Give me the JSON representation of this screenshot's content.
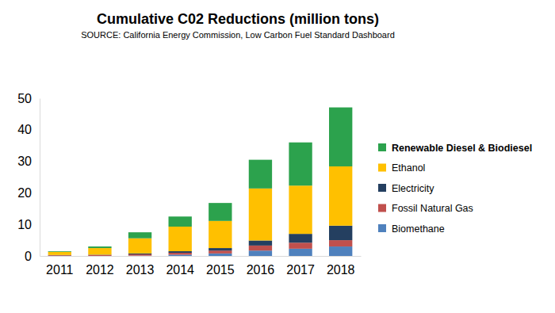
{
  "chart_data": {
    "type": "bar",
    "stacked": true,
    "title": "Cumulative C02 Reductions (million tons)",
    "subtitle": "SOURCE: California Energy Commission, Low Carbon Fuel Standard Dashboard",
    "categories": [
      "2011",
      "2012",
      "2013",
      "2014",
      "2015",
      "2016",
      "2017",
      "2018"
    ],
    "series": [
      {
        "name": "Renewable Diesel & Biodiesel",
        "color": "#2ca24d",
        "values": [
          0.2,
          0.5,
          1.9,
          3.2,
          5.7,
          9.1,
          13.7,
          18.7
        ]
      },
      {
        "name": "Ethanol",
        "color": "#ffc000",
        "values": [
          1.0,
          2.1,
          4.8,
          7.8,
          8.6,
          16.5,
          15.3,
          18.8
        ]
      },
      {
        "name": "Electricity",
        "color": "#243f60",
        "values": [
          0.1,
          0.1,
          0.3,
          0.5,
          0.8,
          1.6,
          2.8,
          4.6
        ]
      },
      {
        "name": "Fossil Natural Gas",
        "color": "#c0504d",
        "values": [
          0.2,
          0.3,
          0.4,
          0.6,
          0.9,
          1.6,
          1.9,
          2.0
        ]
      },
      {
        "name": "Biomethane",
        "color": "#4f81bd",
        "values": [
          0.0,
          0.0,
          0.1,
          0.4,
          0.8,
          1.7,
          2.3,
          3.0
        ]
      }
    ],
    "ylim": [
      0,
      50
    ],
    "yticks": [
      0,
      10,
      20,
      30,
      40,
      50
    ],
    "grid": false,
    "legend": "right"
  }
}
